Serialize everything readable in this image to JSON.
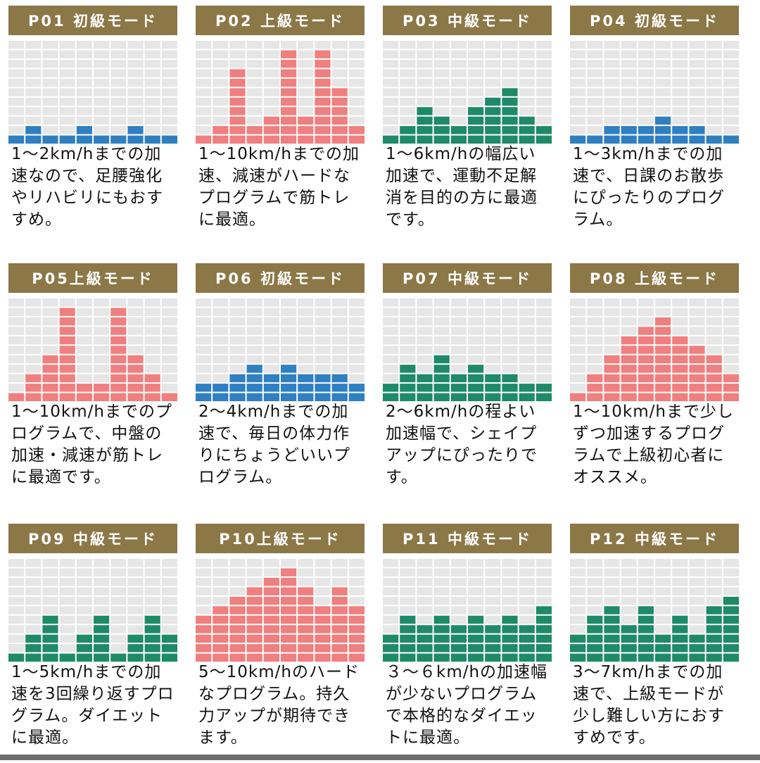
{
  "colors": {
    "header_bg": "#8c7747",
    "grid_empty": "#e6e6e6",
    "beginner": "#2f7fc1",
    "advanced": "#f07f7f",
    "intermediate": "#1f8a68"
  },
  "chart_data": [
    {
      "type": "bar",
      "title": "P01 初級モード",
      "level": "beginner",
      "color": "#2f7fc1",
      "categories": [
        "1",
        "2",
        "3",
        "4",
        "5",
        "6",
        "7",
        "8",
        "9",
        "10"
      ],
      "values": [
        1,
        2,
        1,
        1,
        2,
        1,
        1,
        2,
        1,
        1
      ],
      "ylim": [
        0,
        11
      ],
      "description": "1〜2km/hまでの加速なので、足腰強化やリハビリにもおすすめ。"
    },
    {
      "type": "bar",
      "title": "P02 上級モード",
      "level": "advanced",
      "color": "#f07f7f",
      "categories": [
        "1",
        "2",
        "3",
        "4",
        "5",
        "6",
        "7",
        "8",
        "9",
        "10"
      ],
      "values": [
        1,
        2,
        8,
        2,
        3,
        10,
        3,
        10,
        6,
        2
      ],
      "ylim": [
        0,
        11
      ],
      "description": "1〜10km/hまでの加速、減速がハードなプログラムで筋トレに最適。"
    },
    {
      "type": "bar",
      "title": "P03 中級モード",
      "level": "intermediate",
      "color": "#1f8a68",
      "categories": [
        "1",
        "2",
        "3",
        "4",
        "5",
        "6",
        "7",
        "8",
        "9",
        "10"
      ],
      "values": [
        1,
        2,
        4,
        3,
        2,
        4,
        5,
        6,
        3,
        2
      ],
      "ylim": [
        0,
        11
      ],
      "description": "1〜6km/hの幅広い加速で、運動不足解消を目的の方に最適です。"
    },
    {
      "type": "bar",
      "title": "P04 初級モード",
      "level": "beginner",
      "color": "#2f7fc1",
      "categories": [
        "1",
        "2",
        "3",
        "4",
        "5",
        "6",
        "7",
        "8",
        "9",
        "10"
      ],
      "values": [
        1,
        1,
        2,
        2,
        2,
        3,
        2,
        2,
        1,
        1
      ],
      "ylim": [
        0,
        11
      ],
      "description": "1〜3km/hまでの加速で、日課のお散歩にぴったりのプログラム。"
    },
    {
      "type": "bar",
      "title": "P05上級モード",
      "level": "advanced",
      "color": "#f07f7f",
      "categories": [
        "1",
        "2",
        "3",
        "4",
        "5",
        "6",
        "7",
        "8",
        "9",
        "10"
      ],
      "values": [
        1,
        3,
        5,
        10,
        2,
        2,
        10,
        5,
        3,
        1
      ],
      "ylim": [
        0,
        11
      ],
      "description": "1〜10km/hまでのプログラムで、中盤の加速・減速が筋トレに最適です。"
    },
    {
      "type": "bar",
      "title": "P06 初級モード",
      "level": "beginner",
      "color": "#2f7fc1",
      "categories": [
        "1",
        "2",
        "3",
        "4",
        "5",
        "6",
        "7",
        "8",
        "9",
        "10"
      ],
      "values": [
        2,
        2,
        3,
        4,
        3,
        4,
        3,
        3,
        3,
        2
      ],
      "ylim": [
        0,
        11
      ],
      "description": "2〜4km/hまでの加速で、毎日の体力作りにちょうどいいプログラム。"
    },
    {
      "type": "bar",
      "title": "P07 中級モード",
      "level": "intermediate",
      "color": "#1f8a68",
      "categories": [
        "1",
        "2",
        "3",
        "4",
        "5",
        "6",
        "7",
        "8",
        "9",
        "10"
      ],
      "values": [
        2,
        4,
        3,
        5,
        3,
        4,
        3,
        3,
        2,
        2
      ],
      "ylim": [
        0,
        11
      ],
      "description": "2〜6km/hの程よい加速幅で、シェイプアップにぴったりです。"
    },
    {
      "type": "bar",
      "title": "P08 上級モード",
      "level": "advanced",
      "color": "#f07f7f",
      "categories": [
        "1",
        "2",
        "3",
        "4",
        "5",
        "6",
        "7",
        "8",
        "9",
        "10"
      ],
      "values": [
        1,
        3,
        5,
        7,
        8,
        9,
        7,
        6,
        5,
        3
      ],
      "ylim": [
        0,
        11
      ],
      "description": "1〜10km/hまで少しずつ加速するプログラムで上級初心者にオススメ。"
    },
    {
      "type": "bar",
      "title": "P09 中級モード",
      "level": "intermediate",
      "color": "#1f8a68",
      "categories": [
        "1",
        "2",
        "3",
        "4",
        "5",
        "6",
        "7",
        "8",
        "9",
        "10"
      ],
      "values": [
        1,
        3,
        5,
        1,
        3,
        5,
        1,
        3,
        5,
        3
      ],
      "ylim": [
        0,
        11
      ],
      "description": "1〜5km/hまでの加速を3回繰り返すプログラム。ダイエットに最適。"
    },
    {
      "type": "bar",
      "title": "P10上級モード",
      "level": "advanced",
      "color": "#f07f7f",
      "categories": [
        "1",
        "2",
        "3",
        "4",
        "5",
        "6",
        "7",
        "8",
        "9",
        "10"
      ],
      "values": [
        5,
        6,
        7,
        8,
        9,
        10,
        8,
        6,
        8,
        6
      ],
      "ylim": [
        0,
        11
      ],
      "description": "5〜10km/hのハードなプログラム。持久力アップが期待できます。"
    },
    {
      "type": "bar",
      "title": "P11 中級モード",
      "level": "intermediate",
      "color": "#1f8a68",
      "categories": [
        "1",
        "2",
        "3",
        "4",
        "5",
        "6",
        "7",
        "8",
        "9",
        "10"
      ],
      "values": [
        3,
        5,
        4,
        5,
        4,
        5,
        4,
        5,
        4,
        6
      ],
      "ylim": [
        0,
        11
      ],
      "description": "３〜６km/hの加速幅が少ないプログラムで本格的なダイエットに最適。"
    },
    {
      "type": "bar",
      "title": "P12 中級モード",
      "level": "intermediate",
      "color": "#1f8a68",
      "categories": [
        "1",
        "2",
        "3",
        "4",
        "5",
        "6",
        "7",
        "8",
        "9",
        "10"
      ],
      "values": [
        3,
        5,
        6,
        4,
        6,
        3,
        5,
        3,
        6,
        7
      ],
      "ylim": [
        0,
        11
      ],
      "description": "3〜7km/hまでの加速で、上級モードが少し難しい方におすすめです。"
    }
  ]
}
